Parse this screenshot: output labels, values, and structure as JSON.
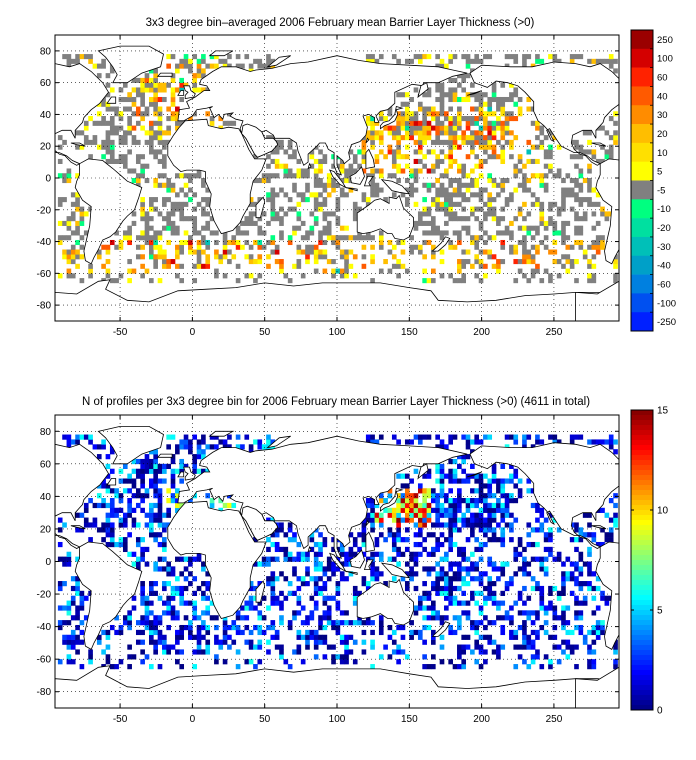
{
  "figure": {
    "background": "#ffffff"
  },
  "chart_data": [
    {
      "type": "heatmap",
      "title": "3x3 degree bin–averaged 2006 February mean Barrier Layer Thickness (>0)",
      "xlabel": "",
      "ylabel": "",
      "xlim": [
        -95,
        295
      ],
      "ylim": [
        -90,
        90
      ],
      "x_ticks": [
        "-50",
        "0",
        "50",
        "100",
        "150",
        "200",
        "250"
      ],
      "y_ticks": [
        "80",
        "60",
        "40",
        "20",
        "0",
        "-20",
        "-40",
        "-60",
        "-80"
      ],
      "grid": true,
      "grid_style": "dotted",
      "colorbar": {
        "labels": [
          "250",
          "100",
          "60",
          "40",
          "30",
          "20",
          "10",
          "5",
          "-5",
          "-10",
          "-20",
          "-30",
          "-40",
          "-60",
          "-100",
          "-250"
        ],
        "colors": [
          "#9b0000",
          "#d40000",
          "#ff2200",
          "#ff5a00",
          "#ff8c00",
          "#ffbe00",
          "#ffe000",
          "#ffff00",
          "#808080",
          "#00ff80",
          "#00e0a0",
          "#00c0b8",
          "#00a0c8",
          "#0080e0",
          "#0050f0",
          "#0020ff"
        ]
      },
      "cell_size_deg": 3
    },
    {
      "type": "heatmap",
      "title": "N of profiles per 3x3 degree bin for 2006 February mean Barrier Layer Thickness (>0) (4611 in total)",
      "xlabel": "",
      "ylabel": "",
      "xlim": [
        -95,
        295
      ],
      "ylim": [
        -90,
        90
      ],
      "x_ticks": [
        "-50",
        "0",
        "50",
        "100",
        "150",
        "200",
        "250"
      ],
      "y_ticks": [
        "80",
        "60",
        "40",
        "20",
        "0",
        "-20",
        "-40",
        "-60",
        "-80"
      ],
      "grid": true,
      "grid_style": "dotted",
      "colorbar": {
        "ticks": [
          "15",
          "10",
          "5",
          "0"
        ],
        "range": [
          0,
          15
        ],
        "colormap": "jet"
      },
      "total_profiles": 4611,
      "cell_size_deg": 3
    }
  ]
}
